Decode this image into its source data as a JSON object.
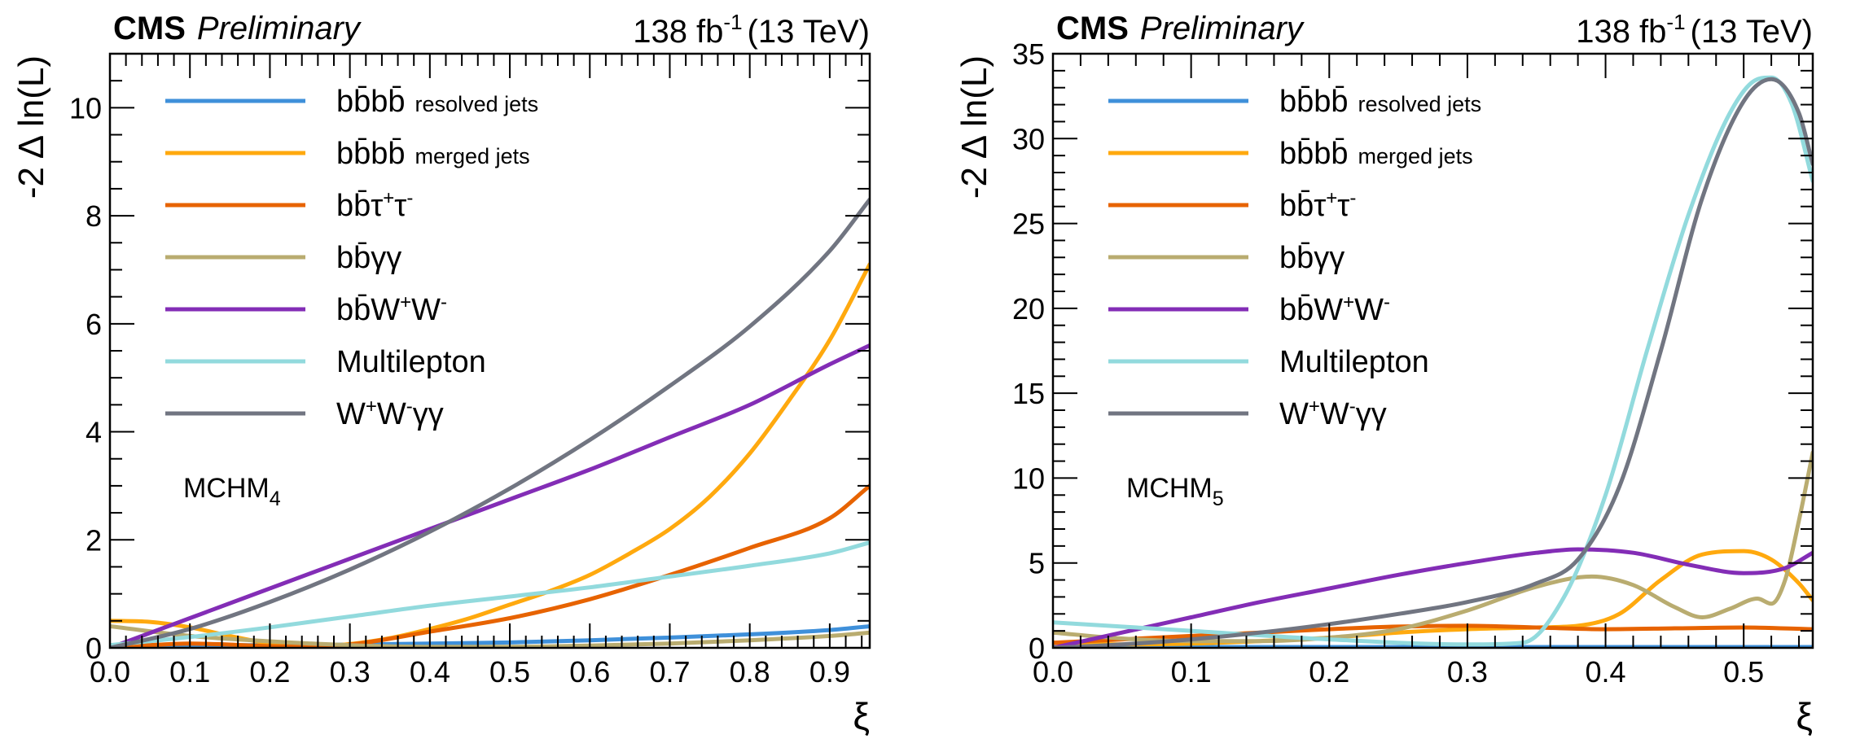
{
  "colors": {
    "bbbb_resolved": "#3f90da",
    "bbbb_merged": "#ffa90e",
    "bbtautau": "#e76300",
    "bbgg": "#b9ac70",
    "bbWW": "#832db6",
    "multilepton": "#92dadd",
    "WWgg": "#717581"
  },
  "chart_data": [
    {
      "type": "line",
      "experiment": "CMS",
      "status": "Preliminary",
      "lumi": "138 fb",
      "lumi_exp": "-1",
      "energy": "(13 TeV)",
      "xlabel": "ξ",
      "ylabel": "-2 Δ ln(L)",
      "xlim": [
        0,
        0.95
      ],
      "ylim": [
        0,
        11
      ],
      "xticks": [
        0.0,
        0.1,
        0.2,
        0.3,
        0.4,
        0.5,
        0.6,
        0.7,
        0.8,
        0.9
      ],
      "xtick_labels": [
        "0.0",
        "0.1",
        "0.2",
        "0.3",
        "0.4",
        "0.5",
        "0.6",
        "0.7",
        "0.8",
        "0.9"
      ],
      "xminor_step": 0.02,
      "yticks": [
        0,
        2,
        4,
        6,
        8,
        10
      ],
      "ytick_labels": [
        "0",
        "2",
        "4",
        "6",
        "8",
        "10"
      ],
      "yminor_step": 0.5,
      "model_label": {
        "main": "MCHM",
        "sub": "4"
      },
      "legend_position": "top-left",
      "series": [
        {
          "name": "bbbb resolved jets",
          "main": "bb̄bb̄",
          "sup": "",
          "small": "resolved jets",
          "color_key": "bbbb_resolved",
          "x": [
            0,
            0.1,
            0.2,
            0.3,
            0.4,
            0.5,
            0.6,
            0.7,
            0.8,
            0.9,
            0.95
          ],
          "y": [
            0.05,
            0.05,
            0.05,
            0.06,
            0.08,
            0.1,
            0.14,
            0.19,
            0.25,
            0.33,
            0.4
          ]
        },
        {
          "name": "bbbb merged jets",
          "main": "bb̄bb̄",
          "sup": "",
          "small": "merged jets",
          "color_key": "bbbb_merged",
          "x": [
            0,
            0.05,
            0.1,
            0.15,
            0.2,
            0.25,
            0.3,
            0.35,
            0.4,
            0.45,
            0.5,
            0.55,
            0.6,
            0.65,
            0.7,
            0.75,
            0.8,
            0.85,
            0.9,
            0.95
          ],
          "y": [
            0.5,
            0.48,
            0.38,
            0.22,
            0.08,
            0.02,
            0.07,
            0.18,
            0.35,
            0.55,
            0.8,
            1.05,
            1.35,
            1.75,
            2.2,
            2.8,
            3.6,
            4.6,
            5.7,
            7.1
          ]
        },
        {
          "name": "bbtautau",
          "main": "bb̄τ",
          "sup": "+",
          "main2": "τ",
          "sup2": "-",
          "small": "",
          "color_key": "bbtautau",
          "x": [
            0,
            0.05,
            0.1,
            0.15,
            0.2,
            0.25,
            0.3,
            0.4,
            0.5,
            0.6,
            0.7,
            0.8,
            0.9,
            0.95
          ],
          "y": [
            0.0,
            0.05,
            0.08,
            0.06,
            0.03,
            0.02,
            0.06,
            0.3,
            0.55,
            0.9,
            1.35,
            1.85,
            2.4,
            3.0
          ]
        },
        {
          "name": "bbgammagamma",
          "main": "bb̄γγ",
          "sup": "",
          "small": "",
          "color_key": "bbgg",
          "x": [
            0,
            0.1,
            0.2,
            0.3,
            0.4,
            0.5,
            0.6,
            0.7,
            0.8,
            0.9,
            0.95
          ],
          "y": [
            0.4,
            0.22,
            0.12,
            0.05,
            0.02,
            0.02,
            0.04,
            0.08,
            0.14,
            0.22,
            0.28
          ]
        },
        {
          "name": "bbWW",
          "main": "bb̄W",
          "sup": "+",
          "main2": "W",
          "sup2": "-",
          "small": "",
          "color_key": "bbWW",
          "x": [
            0,
            0.1,
            0.2,
            0.3,
            0.4,
            0.5,
            0.6,
            0.7,
            0.8,
            0.9,
            0.95
          ],
          "y": [
            0.0,
            0.55,
            1.1,
            1.65,
            2.2,
            2.75,
            3.3,
            3.9,
            4.5,
            5.25,
            5.6
          ]
        },
        {
          "name": "Multilepton",
          "main": "Multilepton",
          "sup": "",
          "small": "",
          "color_key": "multilepton",
          "x": [
            0,
            0.1,
            0.2,
            0.3,
            0.4,
            0.5,
            0.6,
            0.7,
            0.8,
            0.9,
            0.95
          ],
          "y": [
            0.05,
            0.2,
            0.38,
            0.58,
            0.78,
            0.95,
            1.12,
            1.32,
            1.52,
            1.75,
            1.95
          ]
        },
        {
          "name": "WWgammagamma",
          "main": "W",
          "sup": "+",
          "main2": "W",
          "sup2": "-",
          "main3": "γγ",
          "small": "",
          "color_key": "WWgg",
          "x": [
            0,
            0.1,
            0.2,
            0.3,
            0.4,
            0.5,
            0.6,
            0.7,
            0.8,
            0.9,
            0.95
          ],
          "y": [
            0.0,
            0.35,
            0.85,
            1.45,
            2.15,
            2.95,
            3.85,
            4.85,
            5.95,
            7.35,
            8.3
          ]
        }
      ]
    },
    {
      "type": "line",
      "experiment": "CMS",
      "status": "Preliminary",
      "lumi": "138 fb",
      "lumi_exp": "-1",
      "energy": "(13 TeV)",
      "xlabel": "ξ",
      "ylabel": "-2 Δ ln(L)",
      "xlim": [
        0,
        0.55
      ],
      "ylim": [
        0,
        35
      ],
      "xticks": [
        0.0,
        0.1,
        0.2,
        0.3,
        0.4,
        0.5
      ],
      "xtick_labels": [
        "0.0",
        "0.1",
        "0.2",
        "0.3",
        "0.4",
        "0.5"
      ],
      "xminor_step": 0.02,
      "yticks": [
        0,
        5,
        10,
        15,
        20,
        25,
        30,
        35
      ],
      "ytick_labels": [
        "0",
        "5",
        "10",
        "15",
        "20",
        "25",
        "30",
        "35"
      ],
      "yminor_step": 1,
      "model_label": {
        "main": "MCHM",
        "sub": "5"
      },
      "legend_position": "top-left",
      "series": [
        {
          "name": "bbbb resolved jets",
          "main": "bb̄bb̄",
          "sup": "",
          "small": "resolved jets",
          "color_key": "bbbb_resolved",
          "x": [
            0,
            0.1,
            0.2,
            0.3,
            0.4,
            0.5,
            0.55
          ],
          "y": [
            0.05,
            0.05,
            0.05,
            0.05,
            0.05,
            0.05,
            0.05
          ]
        },
        {
          "name": "bbbb merged jets",
          "main": "bb̄bb̄",
          "sup": "",
          "small": "merged jets",
          "color_key": "bbbb_merged",
          "x": [
            0,
            0.05,
            0.1,
            0.15,
            0.2,
            0.25,
            0.3,
            0.35,
            0.38,
            0.41,
            0.44,
            0.47,
            0.5,
            0.52,
            0.54,
            0.55
          ],
          "y": [
            0.3,
            0.2,
            0.25,
            0.4,
            0.6,
            0.9,
            1.1,
            1.2,
            1.3,
            2.0,
            4.0,
            5.5,
            5.7,
            5.2,
            3.8,
            2.8
          ]
        },
        {
          "name": "bbtautau",
          "main": "bb̄τ",
          "sup": "+",
          "main2": "τ",
          "sup2": "-",
          "small": "",
          "color_key": "bbtautau",
          "x": [
            0,
            0.05,
            0.1,
            0.15,
            0.2,
            0.25,
            0.3,
            0.35,
            0.4,
            0.45,
            0.5,
            0.55
          ],
          "y": [
            0.3,
            0.5,
            0.7,
            0.9,
            1.1,
            1.25,
            1.3,
            1.2,
            1.1,
            1.15,
            1.2,
            1.1
          ]
        },
        {
          "name": "bbgammagamma",
          "main": "bb̄γγ",
          "sup": "",
          "small": "",
          "color_key": "bbgg",
          "x": [
            0,
            0.05,
            0.1,
            0.15,
            0.2,
            0.25,
            0.3,
            0.35,
            0.39,
            0.42,
            0.45,
            0.47,
            0.49,
            0.51,
            0.52,
            0.53,
            0.54,
            0.55
          ],
          "y": [
            0.9,
            0.55,
            0.4,
            0.4,
            0.6,
            1.1,
            2.2,
            3.6,
            4.2,
            3.7,
            2.4,
            1.8,
            2.3,
            2.9,
            2.6,
            4.0,
            7.5,
            11.5
          ]
        },
        {
          "name": "bbWW",
          "main": "bb̄W",
          "sup": "+",
          "main2": "W",
          "sup2": "-",
          "small": "",
          "color_key": "bbWW",
          "x": [
            0,
            0.05,
            0.1,
            0.15,
            0.2,
            0.25,
            0.3,
            0.35,
            0.38,
            0.42,
            0.46,
            0.5,
            0.53,
            0.55
          ],
          "y": [
            0.0,
            0.9,
            1.8,
            2.7,
            3.5,
            4.3,
            5.0,
            5.6,
            5.8,
            5.6,
            4.9,
            4.4,
            4.7,
            5.6
          ]
        },
        {
          "name": "Multilepton",
          "main": "Multilepton",
          "sup": "",
          "small": "",
          "color_key": "multilepton",
          "x": [
            0,
            0.1,
            0.2,
            0.3,
            0.34,
            0.37,
            0.4,
            0.43,
            0.46,
            0.49,
            0.51,
            0.52,
            0.535,
            0.55
          ],
          "y": [
            1.5,
            1.0,
            0.5,
            0.2,
            0.3,
            3.0,
            9.0,
            17.5,
            25.5,
            31.5,
            33.5,
            33.6,
            32.0,
            27.5
          ]
        },
        {
          "name": "WWgammagamma",
          "main": "W",
          "sup": "+",
          "main2": "W",
          "sup2": "-",
          "main3": "γγ",
          "small": "",
          "color_key": "WWgg",
          "x": [
            0,
            0.05,
            0.1,
            0.15,
            0.2,
            0.25,
            0.3,
            0.35,
            0.38,
            0.41,
            0.44,
            0.47,
            0.5,
            0.52,
            0.54,
            0.55
          ],
          "y": [
            0.0,
            0.2,
            0.5,
            0.9,
            1.4,
            2.0,
            2.7,
            3.8,
            5.2,
            9.5,
            17.5,
            26.5,
            32.2,
            33.5,
            31.5,
            28.5
          ]
        }
      ]
    }
  ]
}
